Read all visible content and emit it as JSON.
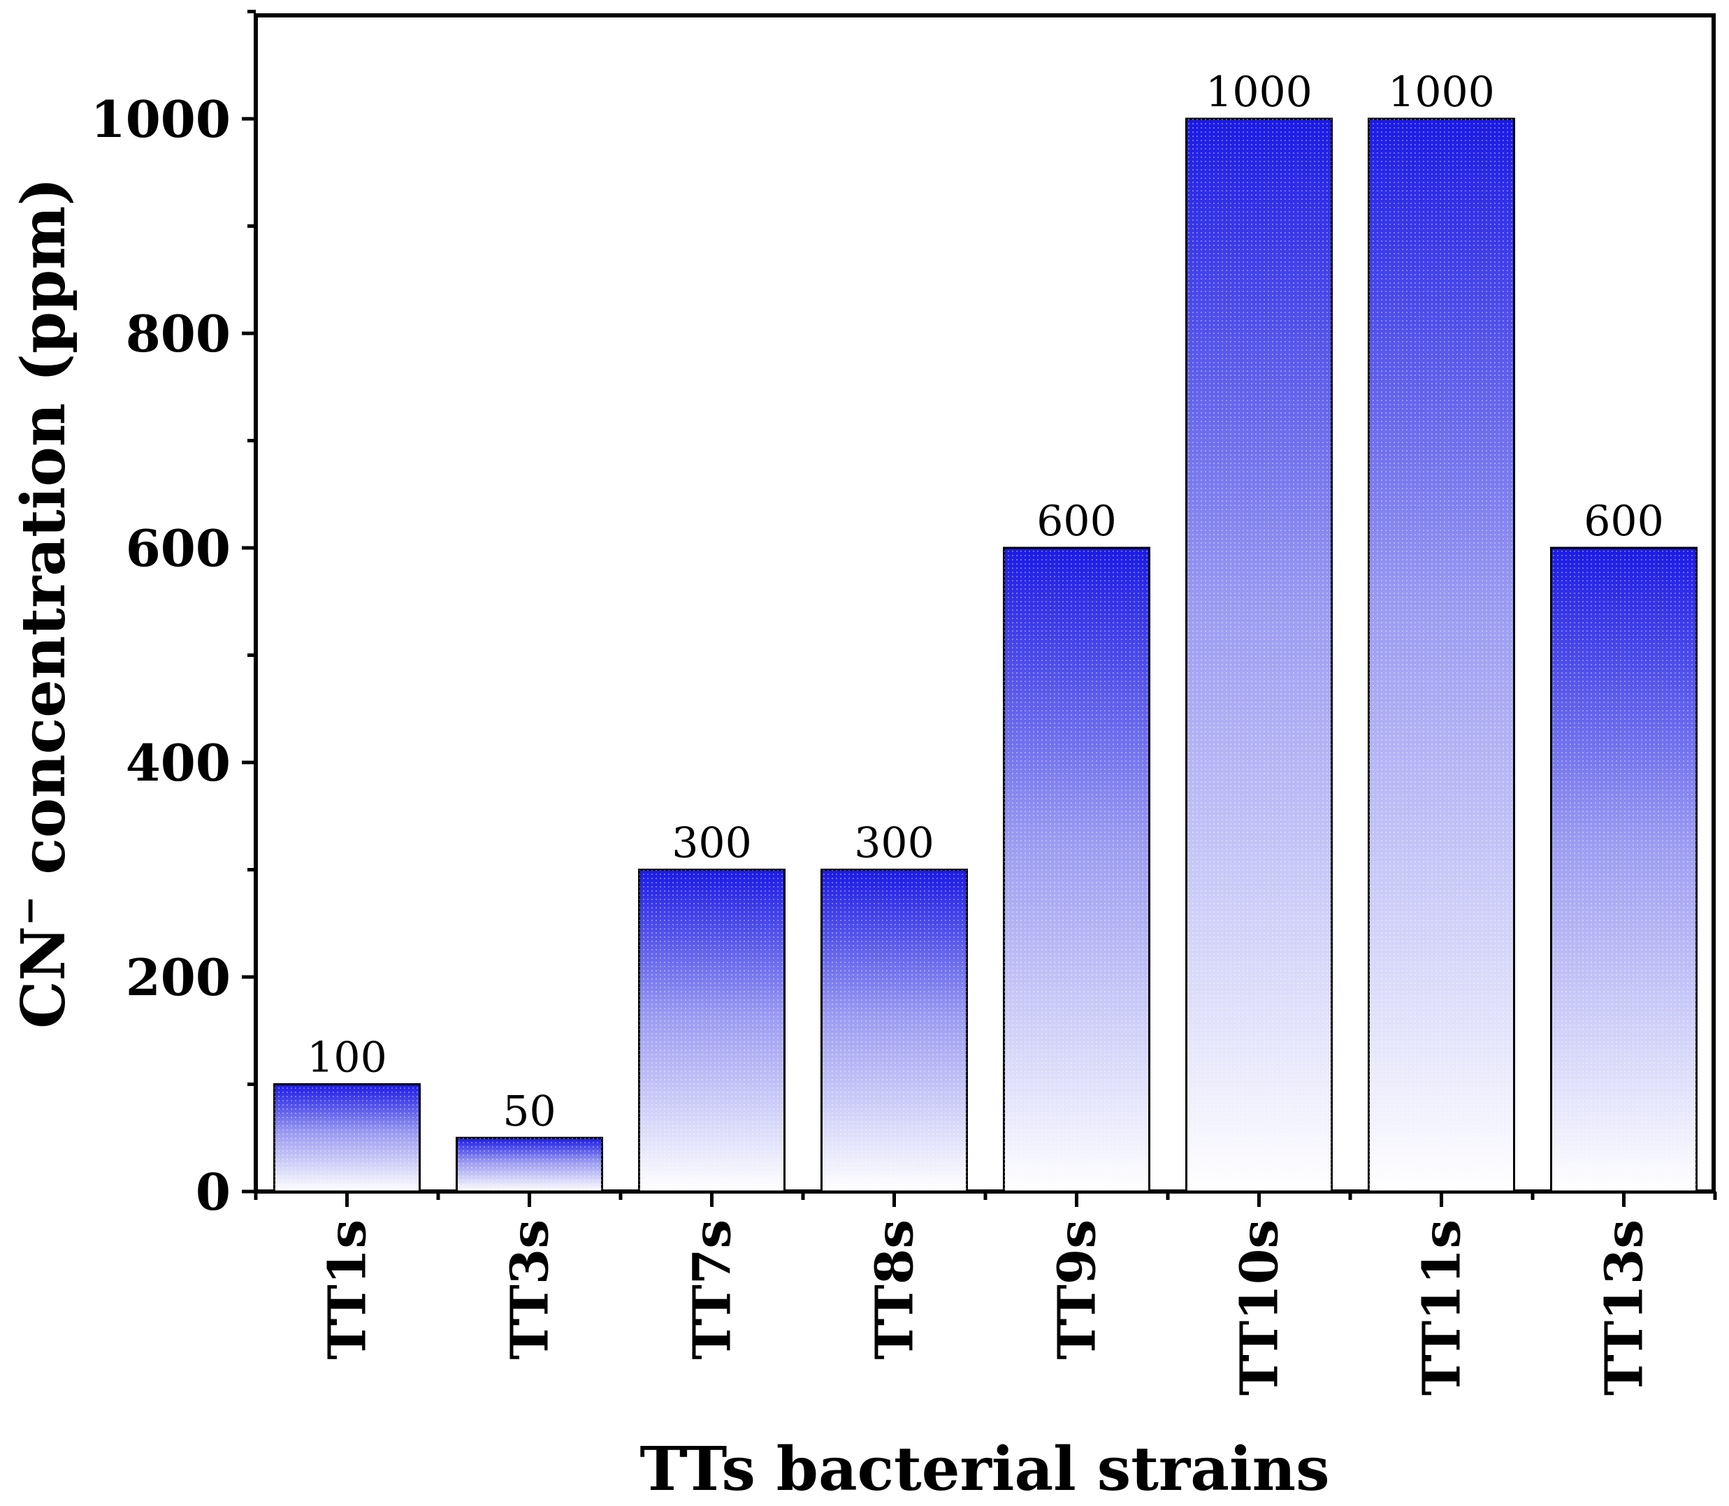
{
  "chart_data": {
    "type": "bar",
    "categories": [
      "TT1s",
      "TT3s",
      "TT7s",
      "TT8s",
      "TT9s",
      "TT10s",
      "TT11s",
      "TT13s"
    ],
    "values": [
      100,
      50,
      300,
      300,
      600,
      1000,
      1000,
      600
    ],
    "data_labels": [
      "100",
      "50",
      "300",
      "300",
      "600",
      "1000",
      "1000",
      "600"
    ],
    "title": "",
    "xlabel": "TTs bacterial strains",
    "ylabel_prefix": "CN",
    "ylabel_superscript": "−",
    "ylabel_suffix": " concentration (ppm)",
    "ylim": [
      0,
      1100
    ],
    "yticks": [
      0,
      200,
      400,
      600,
      800,
      1000
    ],
    "ytick_labels": [
      "0",
      "200",
      "400",
      "600",
      "800",
      "1000"
    ],
    "minor_tick_step": 100,
    "grid": false,
    "colors": {
      "bar_top": "#1a1ae6",
      "bar_mid": "#9a9af2",
      "bar_bottom": "#ffffff",
      "bar_edge": "#000000",
      "axis": "#000000"
    }
  }
}
